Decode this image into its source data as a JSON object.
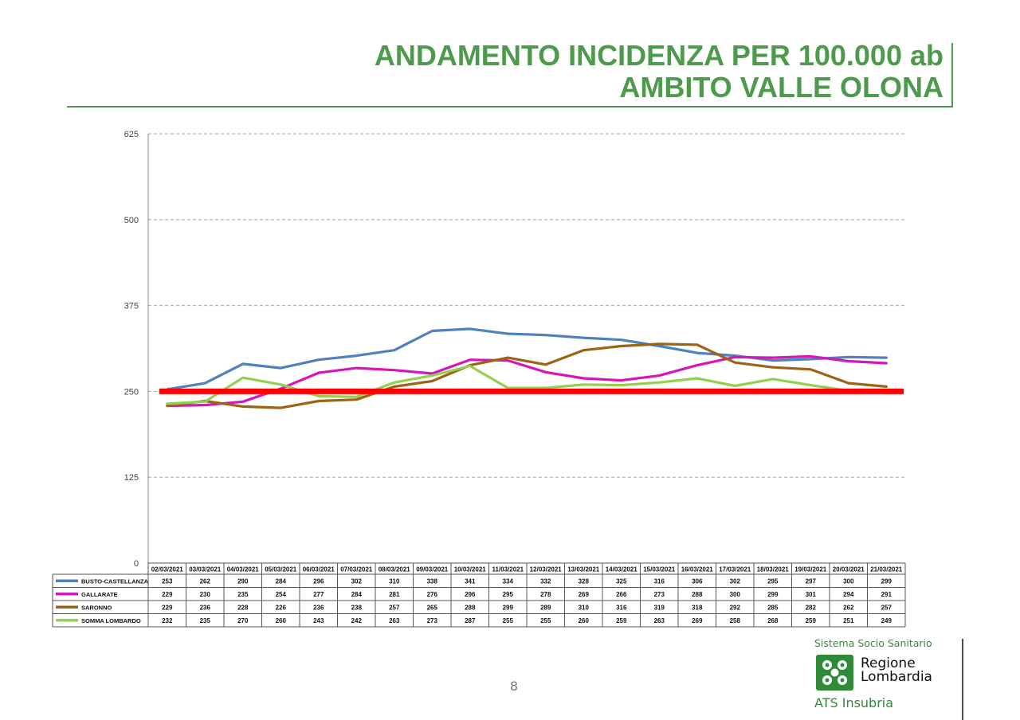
{
  "title": {
    "line1": "ANDAMENTO INCIDENZA PER 100.000 ab",
    "line2": "AMBITO VALLE OLONA"
  },
  "chart_data": {
    "type": "line",
    "ylim": [
      0,
      625
    ],
    "yticks": [
      "0",
      "125",
      "250",
      "375",
      "500",
      "625"
    ],
    "grid": true,
    "legend_placement": "data table below chart",
    "categories": [
      "02/03/2021",
      "03/03/2021",
      "04/03/2021",
      "05/03/2021",
      "06/03/2021",
      "07/03/2021",
      "08/03/2021",
      "09/03/2021",
      "10/03/2021",
      "11/03/2021",
      "12/03/2021",
      "13/03/2021",
      "14/03/2021",
      "15/03/2021",
      "16/03/2021",
      "17/03/2021",
      "18/03/2021",
      "19/03/2021",
      "20/03/2021",
      "21/03/2021"
    ],
    "series": [
      {
        "name": "BUSTO-CASTELLANZA",
        "color": "#4f81bd",
        "values": [
          253,
          262,
          290,
          284,
          296,
          302,
          310,
          338,
          341,
          334,
          332,
          328,
          325,
          316,
          306,
          302,
          295,
          297,
          300,
          299
        ]
      },
      {
        "name": "GALLARATE",
        "color": "#d516b9",
        "values": [
          229,
          230,
          235,
          254,
          277,
          284,
          281,
          276,
          296,
          295,
          278,
          269,
          266,
          273,
          288,
          300,
          299,
          301,
          294,
          291
        ]
      },
      {
        "name": "SARONNO",
        "color": "#9b6414",
        "values": [
          229,
          236,
          228,
          226,
          236,
          238,
          257,
          265,
          288,
          299,
          289,
          310,
          316,
          319,
          318,
          292,
          285,
          282,
          262,
          257
        ]
      },
      {
        "name": "SOMMA LOMBARDO",
        "color": "#92d050",
        "values": [
          232,
          235,
          270,
          260,
          243,
          242,
          263,
          273,
          287,
          255,
          255,
          260,
          259,
          263,
          269,
          258,
          268,
          259,
          251,
          249
        ]
      }
    ],
    "threshold": {
      "value": 250,
      "color": "#ff0000"
    }
  },
  "page_number": "8",
  "logo": {
    "top_text": "Sistema Socio Sanitario",
    "region_line1": "Regione",
    "region_line2": "Lombardia",
    "ats_text": "ATS Insubria",
    "mark_color": "#2f8a3a"
  }
}
